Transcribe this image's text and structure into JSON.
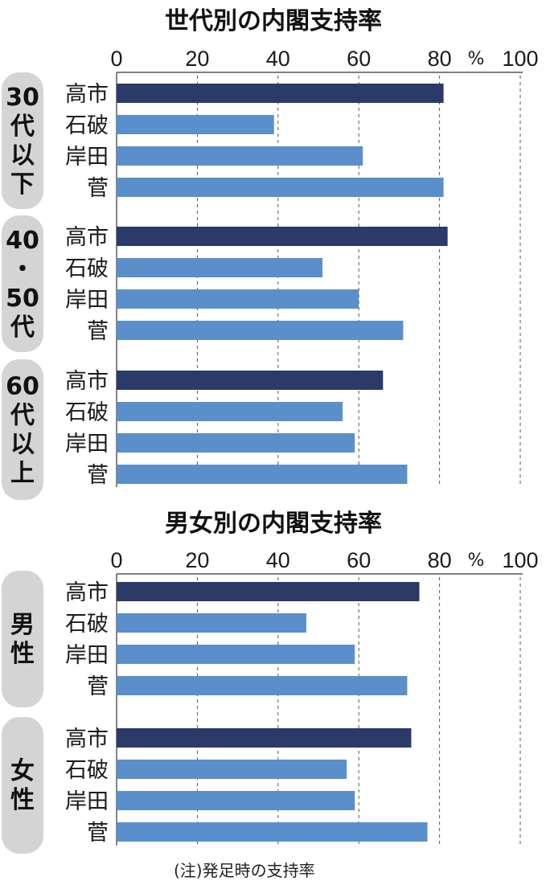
{
  "footnote": "(注)発足時の支持率",
  "colors": {
    "highlight": "#2b3a67",
    "base": "#5b8fcc",
    "group_box": "#d4d4d4",
    "grid": "#555555"
  },
  "chart_data": [
    {
      "type": "bar",
      "orientation": "horizontal",
      "title": "世代別の内閣支持率",
      "xlim": [
        0,
        100
      ],
      "x_ticks": [
        "0",
        "20",
        "40",
        "60",
        "80",
        "100"
      ],
      "unit": "%",
      "grid": "dashed vertical at 20, 40, 60, 80, 100",
      "categories": [
        "高市",
        "石破",
        "岸田",
        "菅"
      ],
      "groups": [
        {
          "label": "30代以下",
          "values": [
            81,
            39,
            61,
            81
          ]
        },
        {
          "label": "40・50代",
          "values": [
            82,
            51,
            60,
            71
          ]
        },
        {
          "label": "60代以上",
          "values": [
            66,
            56,
            59,
            72
          ]
        }
      ]
    },
    {
      "type": "bar",
      "orientation": "horizontal",
      "title": "男女別の内閣支持率",
      "xlim": [
        0,
        100
      ],
      "x_ticks": [
        "0",
        "20",
        "40",
        "60",
        "80",
        "100"
      ],
      "unit": "%",
      "grid": "dashed vertical at 20, 40, 60, 80, 100",
      "categories": [
        "高市",
        "石破",
        "岸田",
        "菅"
      ],
      "groups": [
        {
          "label": "男性",
          "values": [
            75,
            47,
            59,
            72
          ]
        },
        {
          "label": "女性",
          "values": [
            73,
            57,
            59,
            77
          ]
        }
      ]
    }
  ]
}
